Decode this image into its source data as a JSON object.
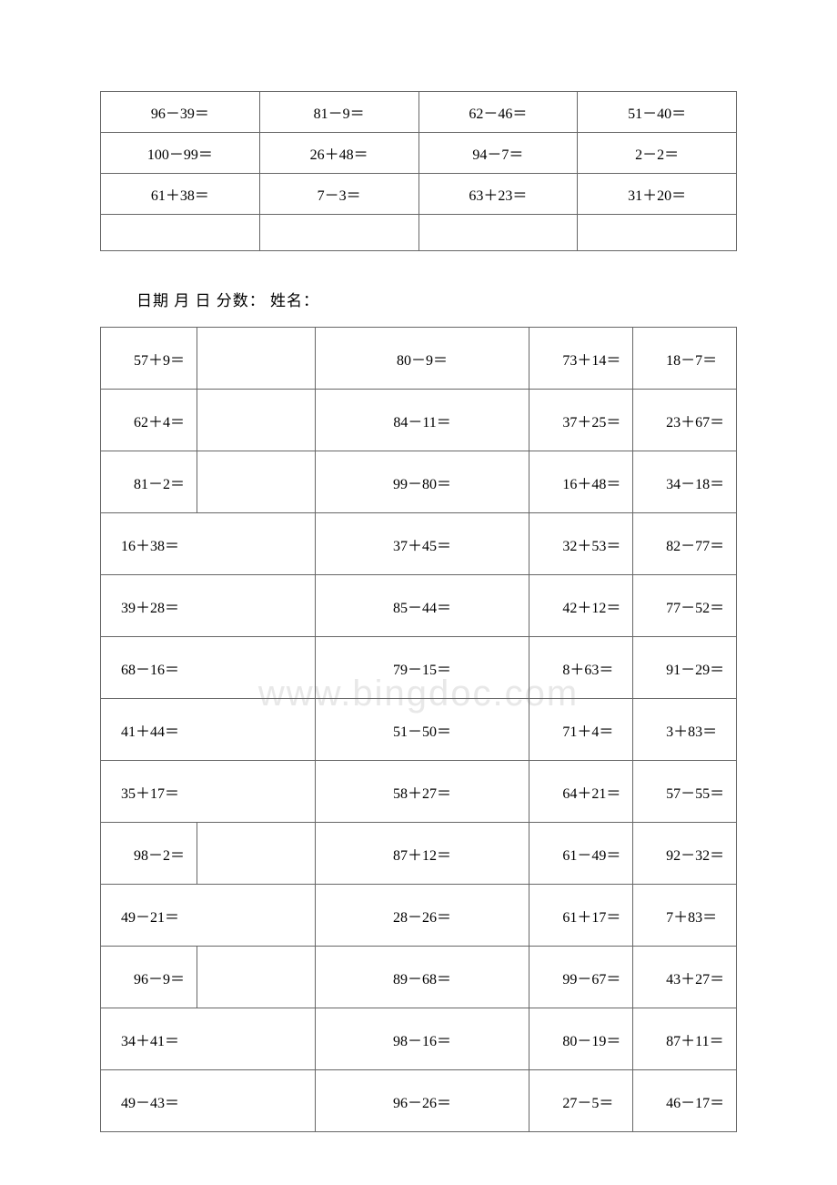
{
  "watermark": "www.bingdoc.com",
  "header": "日期 月 日 分数：  姓名：",
  "table1": {
    "type": "table",
    "border_color": "#666666",
    "text_color": "#000000",
    "font_size": 16,
    "background_color": "#ffffff",
    "columns": 4,
    "rows": [
      [
        "96－39＝",
        "81－9＝",
        "62－46＝",
        "51－40＝"
      ],
      [
        "100－99＝",
        "26＋48＝",
        "94－7＝",
        "2－2＝"
      ],
      [
        "61＋38＝",
        "7－3＝",
        "63＋23＝",
        "31＋20＝"
      ],
      [
        "",
        "",
        "",
        ""
      ]
    ]
  },
  "table2": {
    "type": "table",
    "border_color": "#666666",
    "text_color": "#000000",
    "font_size": 16,
    "background_color": "#ffffff",
    "column_widths_pct": [
      13,
      16,
      29,
      14,
      14
    ],
    "columns_layout": "5-col with split/merged first column",
    "rows": [
      {
        "a": "57＋9＝",
        "split": true,
        "c": "80－9＝",
        "d": "73＋14＝",
        "e": "18－7＝"
      },
      {
        "a": "62＋4＝",
        "split": true,
        "c": "84－11＝",
        "d": "37＋25＝",
        "e": "23＋67＝"
      },
      {
        "a": "81－2＝",
        "split": true,
        "c": "99－80＝",
        "d": "16＋48＝",
        "e": "34－18＝"
      },
      {
        "a": "16＋38＝",
        "split": false,
        "c": "37＋45＝",
        "d": "32＋53＝",
        "e": "82－77＝"
      },
      {
        "a": "39＋28＝",
        "split": false,
        "c": "85－44＝",
        "d": "42＋12＝",
        "e": "77－52＝"
      },
      {
        "a": "68－16＝",
        "split": false,
        "c": "79－15＝",
        "d": "8＋63＝",
        "e": "91－29＝"
      },
      {
        "a": "41＋44＝",
        "split": false,
        "c": "51－50＝",
        "d": "71＋4＝",
        "e": "3＋83＝"
      },
      {
        "a": "35＋17＝",
        "split": false,
        "c": "58＋27＝",
        "d": "64＋21＝",
        "e": "57－55＝"
      },
      {
        "a": "98－2＝",
        "split": true,
        "c": "87＋12＝",
        "d": "61－49＝",
        "e": "92－32＝"
      },
      {
        "a": "49－21＝",
        "split": false,
        "c": "28－26＝",
        "d": "61＋17＝",
        "e": "7＋83＝"
      },
      {
        "a": "96－9＝",
        "split": true,
        "c": "89－68＝",
        "d": "99－67＝",
        "e": "43＋27＝"
      },
      {
        "a": "34＋41＝",
        "split": false,
        "c": "98－16＝",
        "d": "80－19＝",
        "e": "87＋11＝"
      },
      {
        "a": "49－43＝",
        "split": false,
        "c": "96－26＝",
        "d": "27－5＝",
        "e": "46－17＝"
      }
    ]
  }
}
